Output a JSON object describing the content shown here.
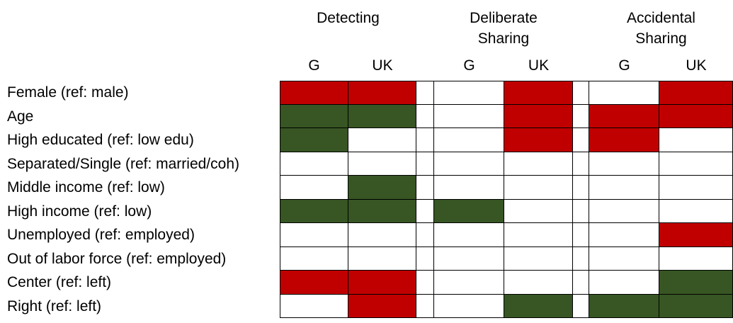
{
  "header": {
    "groups": [
      {
        "line1": "Detecting",
        "line2": ""
      },
      {
        "line1": "Deliberate",
        "line2": "Sharing"
      },
      {
        "line1": "Accidental",
        "line2": "Sharing"
      }
    ],
    "country_labels": [
      "G",
      "UK",
      "G",
      "UK",
      "G",
      "UK"
    ]
  },
  "chart_data": {
    "type": "heatmap",
    "column_groups": [
      "Detecting",
      "Deliberate Sharing",
      "Accidental Sharing"
    ],
    "columns": [
      "Detecting G",
      "Detecting UK",
      "Deliberate Sharing G",
      "Deliberate Sharing UK",
      "Accidental Sharing G",
      "Accidental Sharing UK"
    ],
    "rows": [
      "Female (ref: male)",
      "Age",
      "High educated (ref: low edu)",
      "Separated/Single (ref: married/coh)",
      "Middle income (ref: low)",
      "High income (ref: low)",
      "Unemployed (ref: employed)",
      "Out of labor force (ref: employed)",
      "Center (ref: left)",
      "Right (ref: left)"
    ],
    "cells": [
      [
        "red",
        "red",
        "white",
        "red",
        "white",
        "red"
      ],
      [
        "green",
        "green",
        "white",
        "red",
        "red",
        "red"
      ],
      [
        "green",
        "white",
        "white",
        "red",
        "red",
        "white"
      ],
      [
        "white",
        "white",
        "white",
        "white",
        "white",
        "white"
      ],
      [
        "white",
        "green",
        "white",
        "white",
        "white",
        "white"
      ],
      [
        "green",
        "green",
        "green",
        "white",
        "white",
        "white"
      ],
      [
        "white",
        "white",
        "white",
        "white",
        "white",
        "red"
      ],
      [
        "white",
        "white",
        "white",
        "white",
        "white",
        "white"
      ],
      [
        "red",
        "red",
        "white",
        "white",
        "white",
        "green"
      ],
      [
        "white",
        "red",
        "white",
        "green",
        "green",
        "green"
      ]
    ],
    "color_legend": {
      "red": "#C00000",
      "green": "#375623",
      "white": "#FFFFFF"
    }
  }
}
